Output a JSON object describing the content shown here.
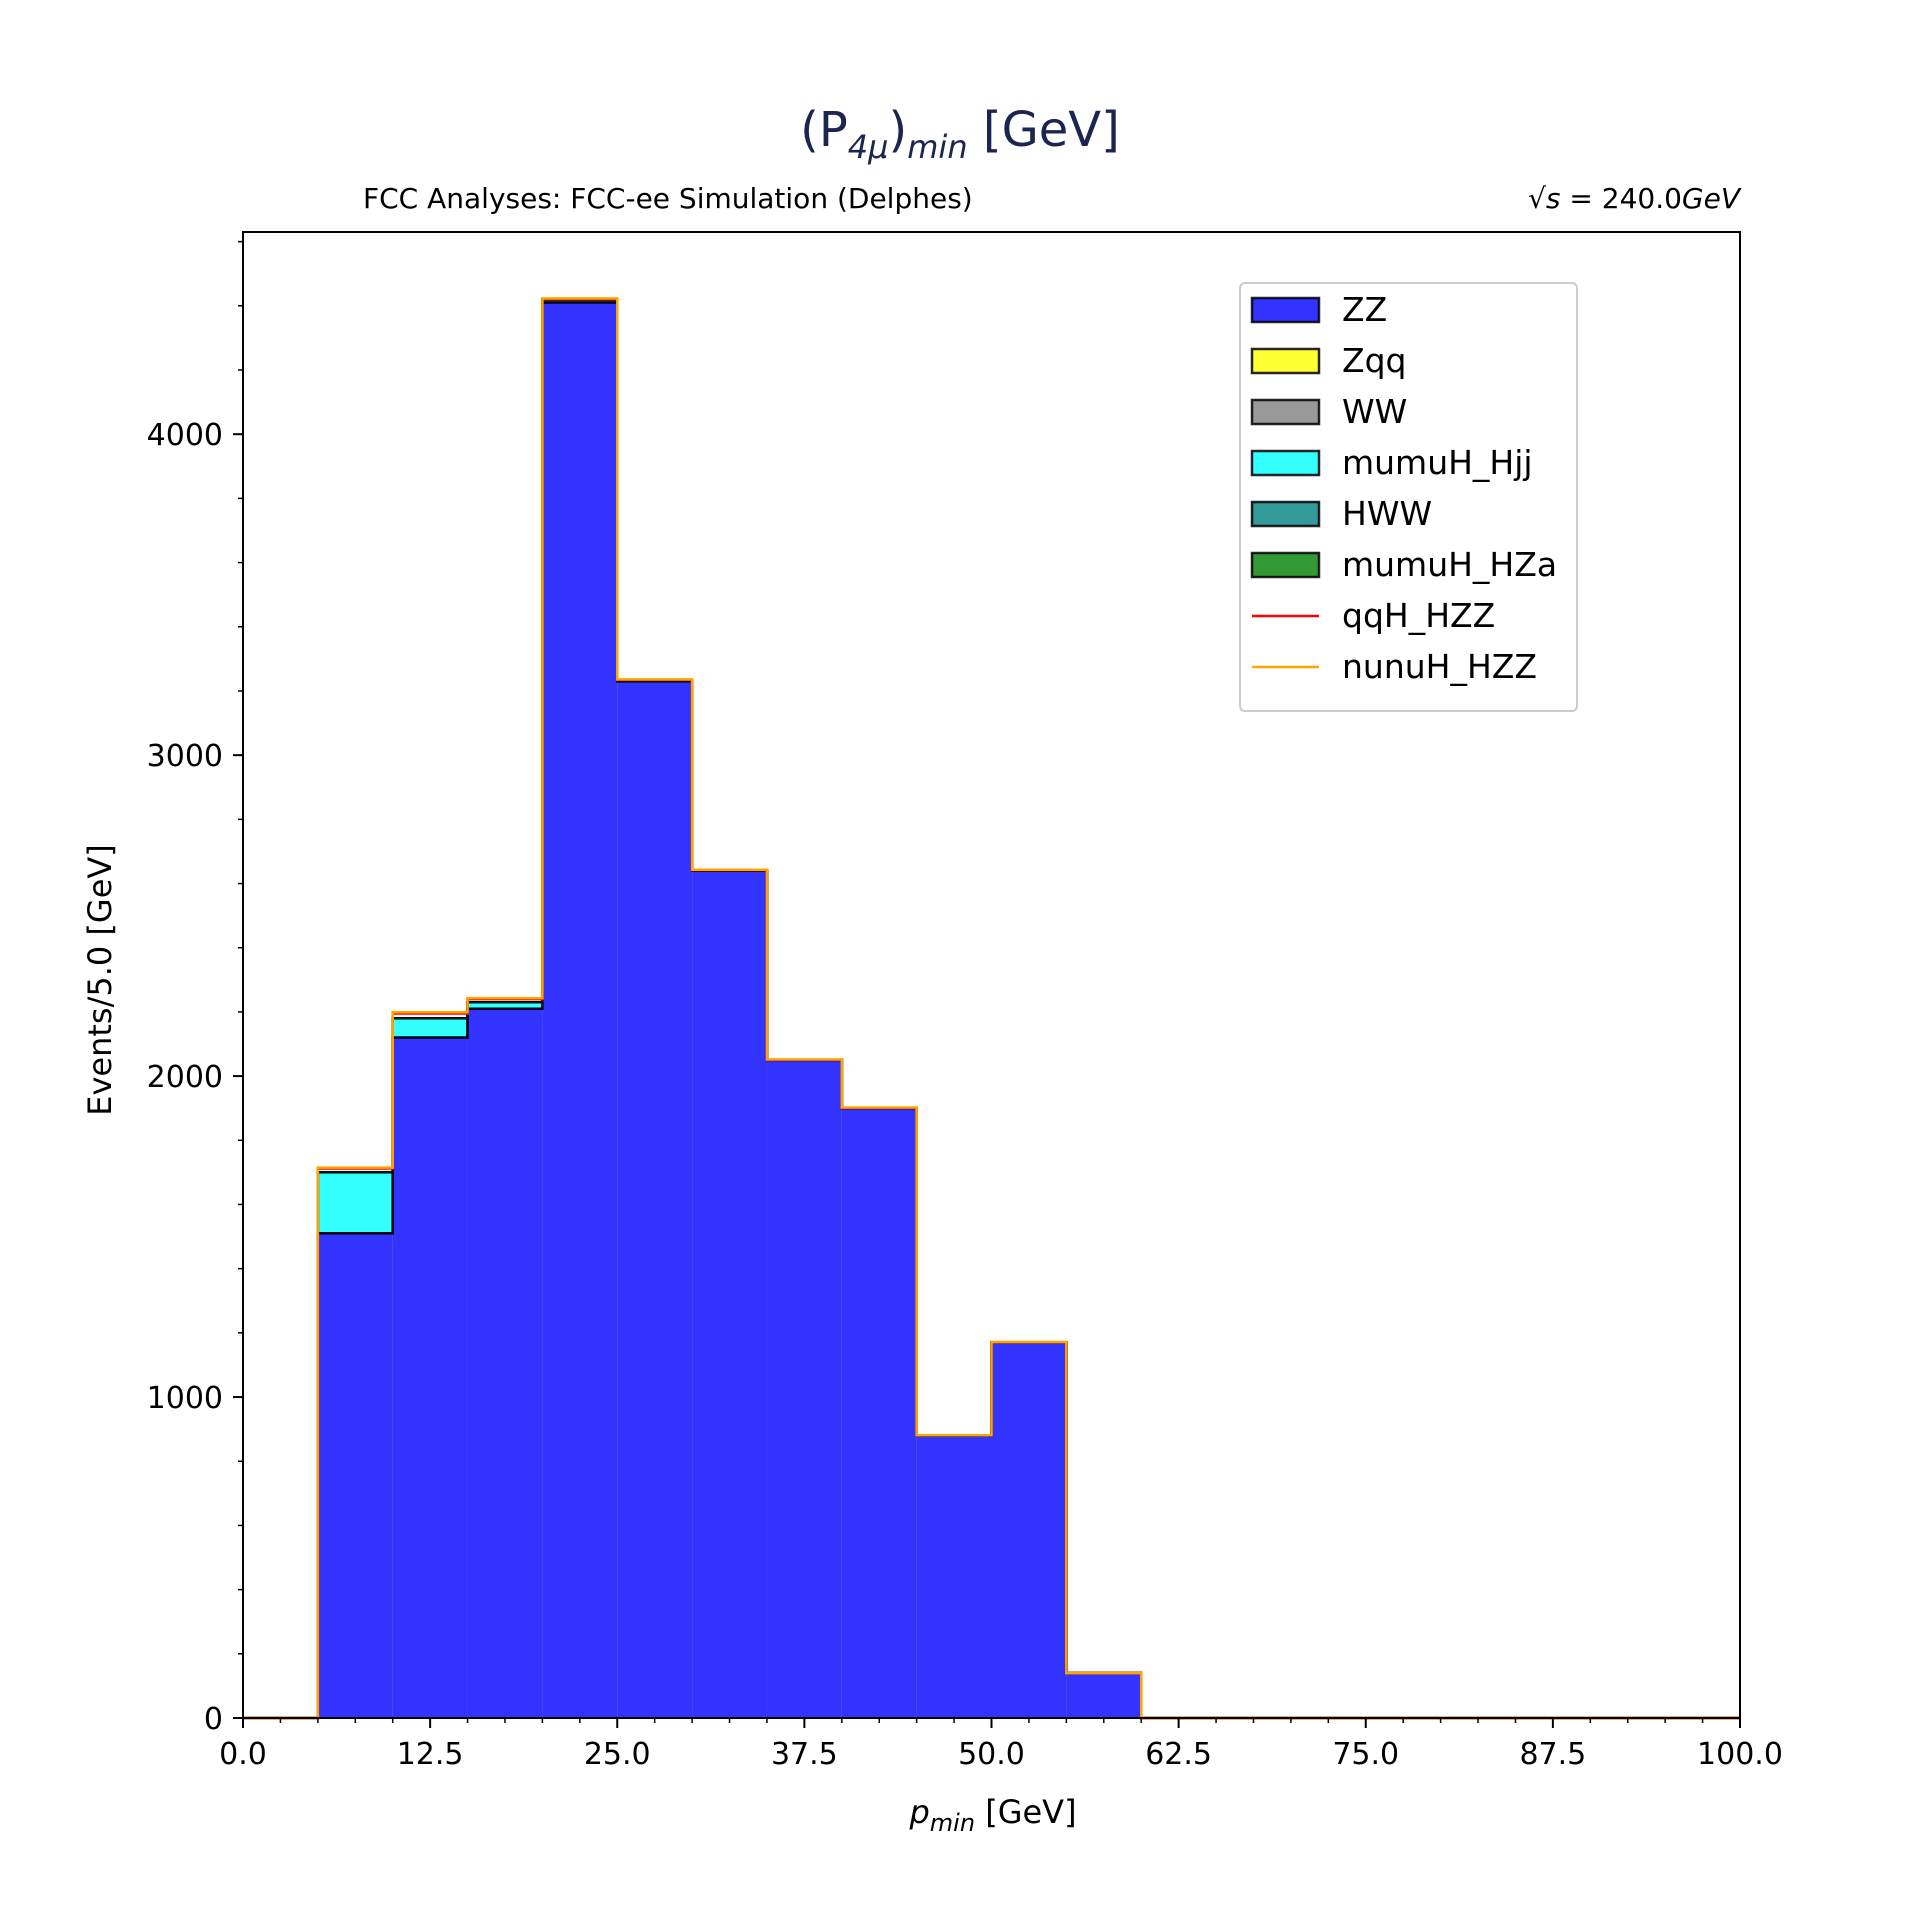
{
  "chart_data": {
    "type": "bar",
    "title_main": "(P",
    "title_sub": "4μ",
    "title_close": ")",
    "title_sub2": "min",
    "title_unit": " [GeV]",
    "subtitle_left": "FCC Analyses: FCC-ee Simulation (Delphes)",
    "subtitle_right_prefix": "√s",
    "subtitle_right_value": " = 240.0",
    "subtitle_right_unit": "GeV",
    "xlabel_var": "p",
    "xlabel_sub": "min",
    "xlabel_unit": " [GeV]",
    "ylabel": "Events/5.0 [GeV]",
    "xlim": [
      0,
      100
    ],
    "ylim": [
      0,
      4630
    ],
    "x_ticks": [
      "0.0",
      "12.5",
      "25.0",
      "37.5",
      "50.0",
      "62.5",
      "75.0",
      "87.5",
      "100.0"
    ],
    "y_ticks": [
      "0",
      "1000",
      "2000",
      "3000",
      "4000"
    ],
    "bin_width": 5,
    "bin_edges": [
      0,
      5,
      10,
      15,
      20,
      25,
      30,
      35,
      40,
      45,
      50,
      55,
      60,
      65,
      70,
      75,
      80,
      85,
      90,
      95,
      100
    ],
    "stacked": true,
    "legend_position": "upper right",
    "series": [
      {
        "name": "ZZ",
        "color": "#3333ff",
        "style": "filled",
        "values": [
          0,
          1510,
          2120,
          2210,
          4410,
          3230,
          2640,
          2050,
          1900,
          880,
          1170,
          140,
          0,
          0,
          0,
          0,
          0,
          0,
          0,
          0
        ]
      },
      {
        "name": "Zqq",
        "color": "#ffff33",
        "style": "filled",
        "values": [
          0,
          0,
          0,
          0,
          0,
          0,
          0,
          0,
          0,
          0,
          0,
          0,
          0,
          0,
          0,
          0,
          0,
          0,
          0,
          0
        ]
      },
      {
        "name": "WW",
        "color": "#999999",
        "style": "filled",
        "values": [
          0,
          0,
          0,
          0,
          0,
          0,
          0,
          0,
          0,
          0,
          0,
          0,
          0,
          0,
          0,
          0,
          0,
          0,
          0,
          0
        ]
      },
      {
        "name": "mumuH_Hjj",
        "color": "#33ffff",
        "style": "filled",
        "values": [
          0,
          190,
          60,
          20,
          8,
          3,
          0,
          0,
          0,
          0,
          0,
          0,
          0,
          0,
          0,
          0,
          0,
          0,
          0,
          0
        ]
      },
      {
        "name": "HWW",
        "color": "#339999",
        "style": "filled",
        "values": [
          0,
          0,
          0,
          0,
          0,
          0,
          0,
          0,
          0,
          0,
          0,
          0,
          0,
          0,
          0,
          0,
          0,
          0,
          0,
          0
        ]
      },
      {
        "name": "mumuH_HZa",
        "color": "#339933",
        "style": "filled",
        "values": [
          0,
          0,
          0,
          0,
          0,
          0,
          0,
          0,
          0,
          0,
          0,
          0,
          0,
          0,
          0,
          0,
          0,
          0,
          0,
          0
        ]
      },
      {
        "name": "qqH_HZZ",
        "color": "#ff0000",
        "style": "line",
        "values": [
          0,
          12,
          15,
          10,
          3,
          2,
          2,
          1,
          1,
          1,
          1,
          0,
          0,
          0,
          0,
          0,
          0,
          0,
          0,
          0
        ]
      },
      {
        "name": "nunuH_HZZ",
        "color": "#ffa500",
        "style": "line",
        "values": [
          0,
          3,
          4,
          3,
          2,
          1,
          1,
          1,
          1,
          0,
          0,
          0,
          0,
          0,
          0,
          0,
          0,
          0,
          0,
          0
        ]
      }
    ]
  }
}
